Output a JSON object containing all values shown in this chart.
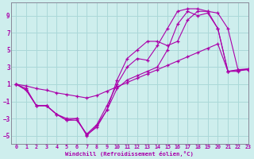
{
  "xlabel": "Windchill (Refroidissement éolien,°C)",
  "bg_color": "#ceeeed",
  "grid_color": "#aad8d8",
  "line_color": "#aa00aa",
  "xlim": [
    -0.5,
    23
  ],
  "ylim": [
    -6,
    10.5
  ],
  "xticks": [
    0,
    1,
    2,
    3,
    4,
    5,
    6,
    7,
    8,
    9,
    10,
    11,
    12,
    13,
    14,
    15,
    16,
    17,
    18,
    19,
    20,
    21,
    22,
    23
  ],
  "yticks": [
    -5,
    -3,
    -1,
    1,
    3,
    5,
    7,
    9
  ],
  "series": [
    [
      1.0,
      0.3,
      -1.5,
      -1.5,
      -2.5,
      -3.0,
      -3.0,
      -5.0,
      -3.8,
      -2.0,
      0.5,
      1.5,
      2.0,
      2.5,
      3.0,
      5.0,
      8.0,
      9.5,
      9.0,
      9.3,
      7.5,
      2.5,
      2.5,
      2.8
    ],
    [
      1.0,
      0.3,
      -1.5,
      -1.5,
      -2.5,
      -3.2,
      -3.0,
      -4.9,
      -4.0,
      -2.0,
      1.5,
      4.0,
      5.0,
      6.0,
      6.0,
      5.5,
      6.0,
      8.5,
      9.5,
      9.5,
      9.3,
      7.5,
      2.7,
      2.7
    ],
    [
      1.0,
      0.5,
      -1.5,
      -1.5,
      -2.5,
      -3.2,
      -3.2,
      -4.8,
      -3.7,
      -1.5,
      1.0,
      3.0,
      4.0,
      3.8,
      5.5,
      7.5,
      9.5,
      9.8,
      9.8,
      9.5,
      7.5,
      2.5,
      2.7,
      2.8
    ]
  ],
  "straight_line": [
    1.0,
    0.8,
    0.5,
    0.3,
    0.0,
    -0.2,
    -0.4,
    -0.6,
    -0.3,
    0.2,
    0.7,
    1.2,
    1.7,
    2.2,
    2.7,
    3.2,
    3.7,
    4.2,
    4.7,
    5.2,
    5.7,
    2.5,
    2.6,
    2.7
  ]
}
